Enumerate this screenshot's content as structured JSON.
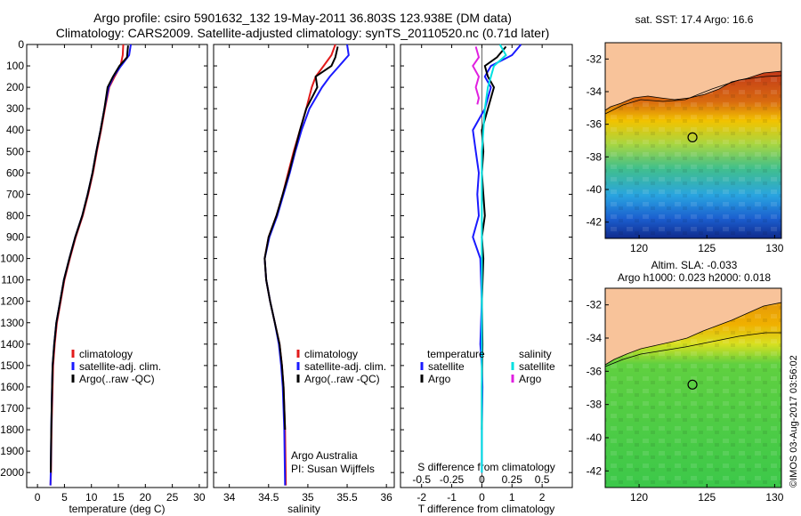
{
  "header": {
    "title_line1": "Argo profile: csiro 5901632_132 19-May-2011 36.803S 123.938E (DM data)",
    "title_line2": "Climatology: CARS2009. Satellite-adjusted climatology: synTS_20110520.nc (0.71d later)"
  },
  "depth_axis": {
    "ylim": [
      0,
      2070
    ],
    "ticks": [
      0,
      100,
      200,
      300,
      400,
      500,
      600,
      700,
      800,
      900,
      1000,
      1100,
      1200,
      1300,
      1400,
      1500,
      1600,
      1700,
      1800,
      1900,
      2000
    ]
  },
  "colors": {
    "climatology": "#e21b1b",
    "satellite": "#1a1aff",
    "argo": "#000000",
    "sat_salinity": "#00e0e0",
    "argo_salinity": "#e020e0"
  },
  "chart_data": [
    {
      "type": "line",
      "xlabel": "temperature (deg C)",
      "xlim": [
        -2,
        31.5
      ],
      "xticks": [
        0,
        5,
        10,
        15,
        20,
        25,
        30
      ],
      "legend": {
        "placement": "bottom-left",
        "entries": [
          "climatology",
          "satellite-adj. clim.",
          "Argo(..raw -QC)"
        ]
      },
      "series": [
        {
          "name": "climatology",
          "color": "#e21b1b",
          "x": [
            15.9,
            15.8,
            15.4,
            14.3,
            13.3,
            12.5,
            11.8,
            11.0,
            10.3,
            9.4,
            8.4,
            7.1,
            6.0,
            5.0,
            4.3,
            3.6,
            3.2,
            2.9,
            2.8,
            2.6,
            2.5,
            2.4
          ],
          "y": [
            0,
            50,
            100,
            150,
            200,
            300,
            400,
            500,
            600,
            700,
            800,
            900,
            1000,
            1100,
            1200,
            1300,
            1400,
            1500,
            1600,
            1800,
            2000,
            2060
          ]
        },
        {
          "name": "satellite-adj. clim.",
          "color": "#1a1aff",
          "x": [
            17.3,
            17.0,
            15.5,
            14.1,
            13.2,
            12.4,
            11.7,
            10.9,
            10.2,
            9.3,
            8.3,
            7.0,
            5.9,
            4.9,
            4.2,
            3.5,
            3.1,
            2.8,
            2.7,
            2.55,
            2.45,
            2.4
          ],
          "y": [
            0,
            50,
            100,
            150,
            200,
            300,
            400,
            500,
            600,
            700,
            800,
            900,
            1000,
            1100,
            1200,
            1300,
            1400,
            1500,
            1600,
            1800,
            2000,
            2060
          ]
        },
        {
          "name": "Argo(..raw -QC)",
          "color": "#000000",
          "x": [
            16.8,
            16.6,
            15.2,
            14.0,
            13.0,
            12.4,
            11.7,
            10.9,
            10.2,
            9.3,
            8.3,
            7.0,
            5.9,
            4.9,
            4.2,
            3.5,
            3.1,
            2.8,
            2.7,
            2.55,
            2.45
          ],
          "y": [
            5,
            60,
            100,
            150,
            200,
            300,
            400,
            500,
            600,
            700,
            800,
            900,
            1000,
            1100,
            1200,
            1300,
            1400,
            1500,
            1600,
            1800,
            2000
          ]
        }
      ]
    },
    {
      "type": "line",
      "xlabel": "salinity",
      "xlim": [
        33.8,
        36.1
      ],
      "xticks": [
        34,
        34.5,
        35,
        35.5,
        36
      ],
      "legend": {
        "placement": "middle-left",
        "entries": [
          "climatology",
          "satellite-adj. clim.",
          "Argo(..raw -QC)"
        ]
      },
      "annotations": [
        "Argo Australia",
        "PI: Susan Wijffels"
      ],
      "series": [
        {
          "name": "climatology",
          "color": "#e21b1b",
          "x": [
            35.35,
            35.3,
            35.2,
            35.1,
            35.05,
            34.98,
            34.9,
            34.82,
            34.75,
            34.68,
            34.6,
            34.5,
            34.45,
            34.47,
            34.52,
            34.58,
            34.64,
            34.67,
            34.69,
            34.71,
            34.72
          ],
          "y": [
            0,
            50,
            100,
            150,
            200,
            300,
            400,
            500,
            600,
            700,
            800,
            900,
            1000,
            1100,
            1200,
            1300,
            1400,
            1500,
            1600,
            1800,
            2060
          ]
        },
        {
          "name": "satellite-adj. clim.",
          "color": "#1a1aff",
          "x": [
            35.5,
            35.52,
            35.4,
            35.28,
            35.18,
            35.02,
            34.92,
            34.84,
            34.77,
            34.69,
            34.61,
            34.51,
            34.45,
            34.47,
            34.52,
            34.58,
            34.63,
            34.66,
            34.68,
            34.7,
            34.71
          ],
          "y": [
            0,
            50,
            100,
            150,
            200,
            300,
            400,
            500,
            600,
            700,
            800,
            900,
            1000,
            1100,
            1200,
            1300,
            1400,
            1500,
            1600,
            1800,
            2060
          ]
        },
        {
          "name": "Argo(..raw -QC)",
          "color": "#000000",
          "x": [
            35.38,
            35.35,
            35.3,
            35.1,
            35.12,
            34.98,
            34.9,
            34.83,
            34.76,
            34.68,
            34.6,
            34.5,
            34.45,
            34.47,
            34.52,
            34.58,
            34.64,
            34.67,
            34.69,
            34.71
          ],
          "y": [
            10,
            60,
            100,
            150,
            200,
            300,
            400,
            500,
            600,
            700,
            800,
            900,
            1000,
            1100,
            1200,
            1300,
            1400,
            1500,
            1600,
            1800
          ]
        }
      ]
    },
    {
      "type": "line",
      "xlabel": "T difference from climatology",
      "xlabel_top": "S difference from climatology",
      "xlim": [
        -2.7,
        3.0
      ],
      "xticks": [
        -2,
        -1,
        0,
        1,
        2
      ],
      "xticks_top": {
        "labels": [
          "-0.5",
          "-0.25",
          "0",
          "0.25",
          "0.5"
        ],
        "positions": [
          -2,
          -1,
          0,
          1,
          2
        ]
      },
      "legend": {
        "placement": "middle",
        "headers": [
          "temperature",
          "salinity"
        ],
        "entries": [
          "satellite",
          "Argo",
          "satellite",
          "Argo"
        ]
      },
      "series": [
        {
          "name": "satellite",
          "group": "temperature",
          "color": "#1a1aff",
          "x": [
            1.3,
            1.0,
            0.3,
            0.1,
            0.3,
            0.1,
            -0.3,
            -0.2,
            -0.1,
            -0.15,
            -0.1,
            -0.3,
            -0.05,
            0.0,
            -0.05,
            0.0,
            0.02,
            0.0,
            0.0
          ],
          "y": [
            0,
            50,
            100,
            150,
            200,
            300,
            400,
            500,
            600,
            700,
            800,
            900,
            1000,
            1200,
            1400,
            1500,
            1600,
            1800,
            2000
          ]
        },
        {
          "name": "Argo",
          "group": "temperature",
          "color": "#000000",
          "x": [
            0.8,
            0.5,
            0.1,
            0.2,
            0.4,
            0.2,
            0.0,
            0.05,
            0.0,
            0.05,
            0.1,
            0.0,
            0.05,
            0.0,
            0.02,
            0.0,
            0.0
          ],
          "y": [
            10,
            60,
            100,
            150,
            200,
            300,
            400,
            500,
            600,
            700,
            800,
            900,
            1000,
            1200,
            1400,
            1600,
            1800
          ]
        },
        {
          "name": "satellite",
          "group": "salinity",
          "color": "#00e0e0",
          "x": [
            0.6,
            0.8,
            0.4,
            0.3,
            0.2,
            0.1,
            0.05,
            0.0,
            0.0,
            0.0,
            0.0,
            0.0,
            0.0,
            0.0,
            0.0
          ],
          "y": [
            0,
            50,
            100,
            150,
            200,
            300,
            400,
            500,
            600,
            800,
            1000,
            1200,
            1400,
            1800,
            2000
          ]
        },
        {
          "name": "Argo",
          "group": "salinity",
          "color": "#e020e0",
          "x": [
            -0.2,
            -0.1,
            -0.3,
            -0.1,
            -0.2,
            -0.1,
            -0.15
          ],
          "y": [
            10,
            60,
            100,
            150,
            200,
            250,
            280
          ]
        }
      ]
    },
    {
      "type": "heatmap",
      "title": "sat. SST: 17.4 Argo: 16.6",
      "xlim": [
        117.5,
        130.5
      ],
      "ylim": [
        -43,
        -31
      ],
      "xticks": [
        120,
        125,
        130
      ],
      "yticks": [
        -32,
        -34,
        -36,
        -38,
        -40,
        -42
      ],
      "marker": {
        "lon": 123.938,
        "lat": -36.803
      }
    },
    {
      "type": "heatmap",
      "title": [
        "Altim. SLA: -0.033",
        "Argo h1000: 0.023 h2000: 0.018"
      ],
      "xlim": [
        117.5,
        130.5
      ],
      "ylim": [
        -43,
        -31
      ],
      "xticks": [
        120,
        125,
        130
      ],
      "yticks": [
        -32,
        -34,
        -36,
        -38,
        -40,
        -42
      ],
      "marker": {
        "lon": 123.938,
        "lat": -36.803
      }
    }
  ],
  "stamp": "©IMOS 03-Aug-2017 03:56:02"
}
